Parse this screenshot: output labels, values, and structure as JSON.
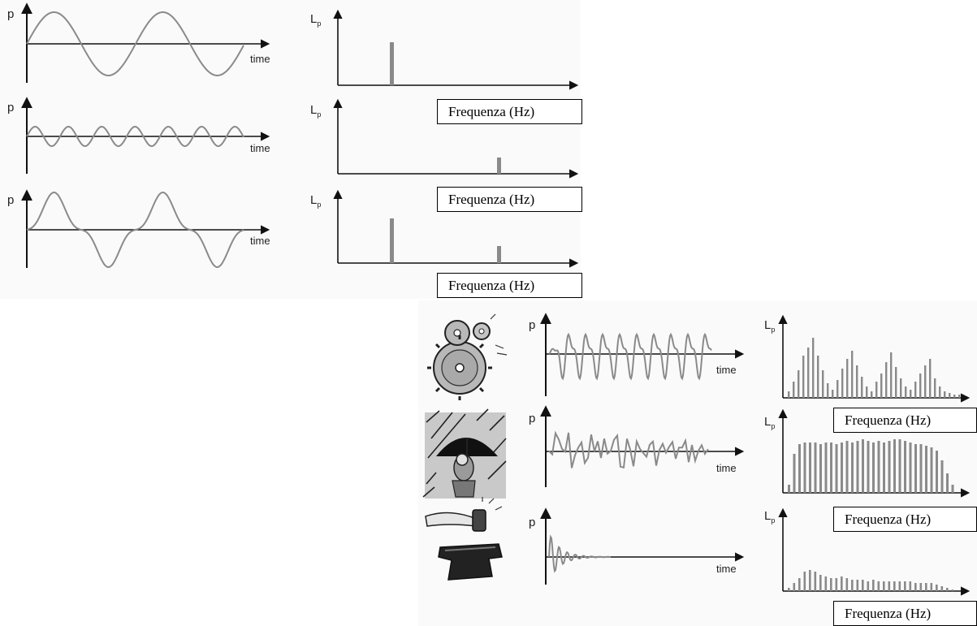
{
  "labels": {
    "pressure": "p",
    "level_base": "L",
    "level_sub": "p",
    "time": "time",
    "frequency": "Frequenza (Hz)"
  },
  "colors": {
    "wave": "#8a8a8a",
    "axis": "#111111",
    "bar": "#8a8a8a"
  },
  "icons": [
    "gears-icon",
    "umbrella-rain-icon",
    "hammer-anvil-icon"
  ]
}
